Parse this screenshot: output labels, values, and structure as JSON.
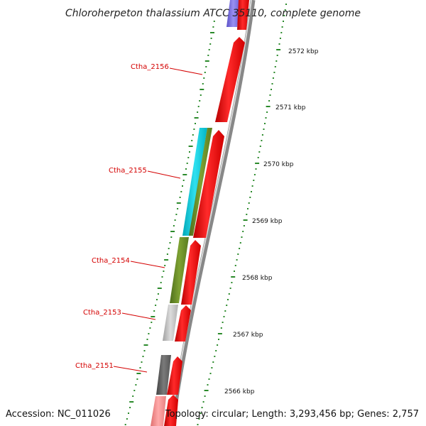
{
  "map": {
    "title": "Chloroherpeton thalassium ATCC 35110, complete genome",
    "accession": "Accession: NC_011026",
    "topology": "Topology: circular; Length: 3,293,456 bp; Genes: 2,757"
  },
  "colors": {
    "forward_gene": "#ff0000",
    "backbone": "#888888",
    "tick": "#2b8a2b",
    "label": "#d40000"
  },
  "gene_labels": [
    {
      "name": "Ctha_2156"
    },
    {
      "name": "Ctha_2155"
    },
    {
      "name": "Ctha_2154"
    },
    {
      "name": "Ctha_2153"
    },
    {
      "name": "Ctha_2151"
    }
  ],
  "ticks": [
    {
      "label": "2572 kbp"
    },
    {
      "label": "2571 kbp"
    },
    {
      "label": "2570 kbp"
    },
    {
      "label": "2569 kbp"
    },
    {
      "label": "2568 kbp"
    },
    {
      "label": "2567 kbp"
    },
    {
      "label": "2566 kbp"
    }
  ]
}
